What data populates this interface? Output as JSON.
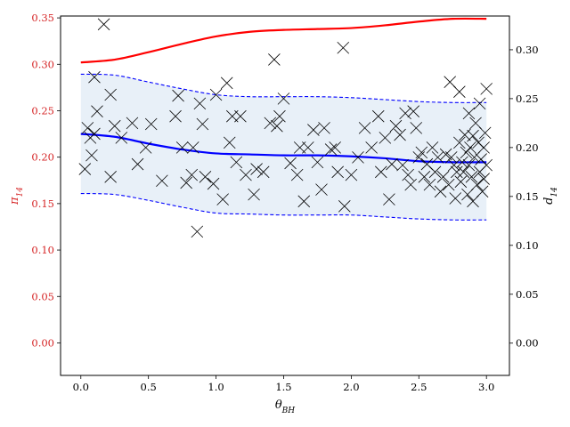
{
  "chart_data": {
    "type": "scatter",
    "title": "",
    "xlabel": "θ_BH",
    "ylabel_left": "π_14",
    "ylabel_right": "d_14",
    "xlim": [
      -0.15,
      3.17
    ],
    "ylim_left": [
      -0.035,
      0.352
    ],
    "ylim_right": [
      -0.033,
      0.3345
    ],
    "x_ticks": [
      0.0,
      0.5,
      1.0,
      1.5,
      2.0,
      2.5,
      3.0
    ],
    "x_tick_labels": [
      "0.0",
      "0.5",
      "1.0",
      "1.5",
      "2.0",
      "2.5",
      "3.0"
    ],
    "y_left_ticks": [
      0.0,
      0.05,
      0.1,
      0.15,
      0.2,
      0.25,
      0.3,
      0.35
    ],
    "y_left_tick_labels": [
      "0.00",
      "0.05",
      "0.10",
      "0.15",
      "0.20",
      "0.25",
      "0.30",
      "0.35"
    ],
    "y_right_ticks": [
      0.0,
      0.05,
      0.1,
      0.15,
      0.2,
      0.25,
      0.3
    ],
    "y_right_tick_labels": [
      "0.00",
      "0.05",
      "0.10",
      "0.15",
      "0.20",
      "0.25",
      "0.30"
    ],
    "left_axis_color": "#d62728",
    "grid": false,
    "series": [
      {
        "role": "red line (left axis)",
        "color": "#ff0000",
        "axis": "left",
        "x": [
          0.0,
          0.25,
          0.5,
          0.75,
          1.0,
          1.25,
          1.5,
          1.75,
          2.0,
          2.25,
          2.5,
          2.75,
          3.0
        ],
        "y": [
          0.302,
          0.305,
          0.313,
          0.322,
          0.33,
          0.335,
          0.337,
          0.338,
          0.339,
          0.342,
          0.346,
          0.349,
          0.349
        ]
      },
      {
        "role": "blue mean line (right axis)",
        "color": "#0000ff",
        "axis": "right",
        "x": [
          0.0,
          0.25,
          0.5,
          0.75,
          1.0,
          1.25,
          1.5,
          1.75,
          2.0,
          2.25,
          2.5,
          2.75,
          3.0
        ],
        "y": [
          0.214,
          0.211,
          0.204,
          0.198,
          0.194,
          0.193,
          0.192,
          0.192,
          0.191,
          0.189,
          0.186,
          0.185,
          0.185
        ]
      },
      {
        "role": "upper dashed band edge (right axis)",
        "color": "#0000ff",
        "axis": "right",
        "x": [
          0.0,
          0.25,
          0.5,
          0.75,
          1.0,
          1.25,
          1.5,
          1.75,
          2.0,
          2.25,
          2.5,
          2.75,
          3.0
        ],
        "y": [
          0.275,
          0.274,
          0.267,
          0.26,
          0.254,
          0.252,
          0.252,
          0.252,
          0.251,
          0.249,
          0.247,
          0.246,
          0.246
        ]
      },
      {
        "role": "lower dashed band edge (right axis)",
        "color": "#0000ff",
        "axis": "right",
        "x": [
          0.0,
          0.25,
          0.5,
          0.75,
          1.0,
          1.25,
          1.5,
          1.75,
          2.0,
          2.25,
          2.5,
          2.75,
          3.0
        ],
        "y": [
          0.153,
          0.152,
          0.146,
          0.139,
          0.133,
          0.132,
          0.131,
          0.131,
          0.131,
          0.129,
          0.127,
          0.126,
          0.126
        ]
      },
      {
        "role": "scatter points (right axis)",
        "marker": "x",
        "color": "#000000",
        "axis": "right",
        "points": [
          [
            0.03,
            0.178
          ],
          [
            0.05,
            0.22
          ],
          [
            0.07,
            0.21
          ],
          [
            0.08,
            0.192
          ],
          [
            0.1,
            0.214
          ],
          [
            0.1,
            0.272
          ],
          [
            0.12,
            0.237
          ],
          [
            0.17,
            0.326
          ],
          [
            0.22,
            0.254
          ],
          [
            0.22,
            0.17
          ],
          [
            0.25,
            0.222
          ],
          [
            0.3,
            0.21
          ],
          [
            0.38,
            0.225
          ],
          [
            0.42,
            0.183
          ],
          [
            0.48,
            0.2
          ],
          [
            0.52,
            0.224
          ],
          [
            0.6,
            0.166
          ],
          [
            0.7,
            0.232
          ],
          [
            0.72,
            0.253
          ],
          [
            0.75,
            0.2
          ],
          [
            0.78,
            0.164
          ],
          [
            0.82,
            0.172
          ],
          [
            0.83,
            0.2
          ],
          [
            0.86,
            0.114
          ],
          [
            0.88,
            0.245
          ],
          [
            0.9,
            0.224
          ],
          [
            0.92,
            0.17
          ],
          [
            0.98,
            0.163
          ],
          [
            1.0,
            0.254
          ],
          [
            1.05,
            0.147
          ],
          [
            1.08,
            0.266
          ],
          [
            1.1,
            0.205
          ],
          [
            1.12,
            0.232
          ],
          [
            1.15,
            0.185
          ],
          [
            1.18,
            0.232
          ],
          [
            1.22,
            0.172
          ],
          [
            1.28,
            0.152
          ],
          [
            1.3,
            0.178
          ],
          [
            1.35,
            0.175
          ],
          [
            1.4,
            0.225
          ],
          [
            1.43,
            0.29
          ],
          [
            1.45,
            0.222
          ],
          [
            1.47,
            0.232
          ],
          [
            1.5,
            0.25
          ],
          [
            1.55,
            0.184
          ],
          [
            1.6,
            0.172
          ],
          [
            1.62,
            0.2
          ],
          [
            1.65,
            0.145
          ],
          [
            1.68,
            0.2
          ],
          [
            1.72,
            0.218
          ],
          [
            1.75,
            0.185
          ],
          [
            1.78,
            0.157
          ],
          [
            1.8,
            0.22
          ],
          [
            1.85,
            0.198
          ],
          [
            1.88,
            0.2
          ],
          [
            1.9,
            0.175
          ],
          [
            1.94,
            0.302
          ],
          [
            1.95,
            0.14
          ],
          [
            2.0,
            0.172
          ],
          [
            2.05,
            0.19
          ],
          [
            2.1,
            0.22
          ],
          [
            2.15,
            0.2
          ],
          [
            2.2,
            0.232
          ],
          [
            2.22,
            0.175
          ],
          [
            2.25,
            0.21
          ],
          [
            2.28,
            0.147
          ],
          [
            2.3,
            0.183
          ],
          [
            2.33,
            0.222
          ],
          [
            2.36,
            0.213
          ],
          [
            2.38,
            0.182
          ],
          [
            2.4,
            0.235
          ],
          [
            2.42,
            0.172
          ],
          [
            2.44,
            0.162
          ],
          [
            2.46,
            0.237
          ],
          [
            2.48,
            0.22
          ],
          [
            2.5,
            0.19
          ],
          [
            2.52,
            0.195
          ],
          [
            2.54,
            0.17
          ],
          [
            2.56,
            0.183
          ],
          [
            2.58,
            0.162
          ],
          [
            2.6,
            0.2
          ],
          [
            2.62,
            0.175
          ],
          [
            2.64,
            0.19
          ],
          [
            2.66,
            0.155
          ],
          [
            2.68,
            0.17
          ],
          [
            2.7,
            0.193
          ],
          [
            2.72,
            0.162
          ],
          [
            2.73,
            0.267
          ],
          [
            2.74,
            0.19
          ],
          [
            2.76,
            0.182
          ],
          [
            2.77,
            0.148
          ],
          [
            2.78,
            0.175
          ],
          [
            2.8,
            0.205
          ],
          [
            2.8,
            0.257
          ],
          [
            2.81,
            0.165
          ],
          [
            2.82,
            0.185
          ],
          [
            2.83,
            0.175
          ],
          [
            2.84,
            0.213
          ],
          [
            2.85,
            0.195
          ],
          [
            2.86,
            0.152
          ],
          [
            2.87,
            0.182
          ],
          [
            2.87,
            0.235
          ],
          [
            2.88,
            0.2
          ],
          [
            2.89,
            0.17
          ],
          [
            2.9,
            0.212
          ],
          [
            2.9,
            0.145
          ],
          [
            2.91,
            0.19
          ],
          [
            2.92,
            0.225
          ],
          [
            2.93,
            0.162
          ],
          [
            2.94,
            0.205
          ],
          [
            2.95,
            0.175
          ],
          [
            2.95,
            0.245
          ],
          [
            2.96,
            0.188
          ],
          [
            2.97,
            0.155
          ],
          [
            2.98,
            0.2
          ],
          [
            2.98,
            0.168
          ],
          [
            2.99,
            0.215
          ],
          [
            3.0,
            0.182
          ],
          [
            3.0,
            0.26
          ]
        ]
      }
    ]
  }
}
